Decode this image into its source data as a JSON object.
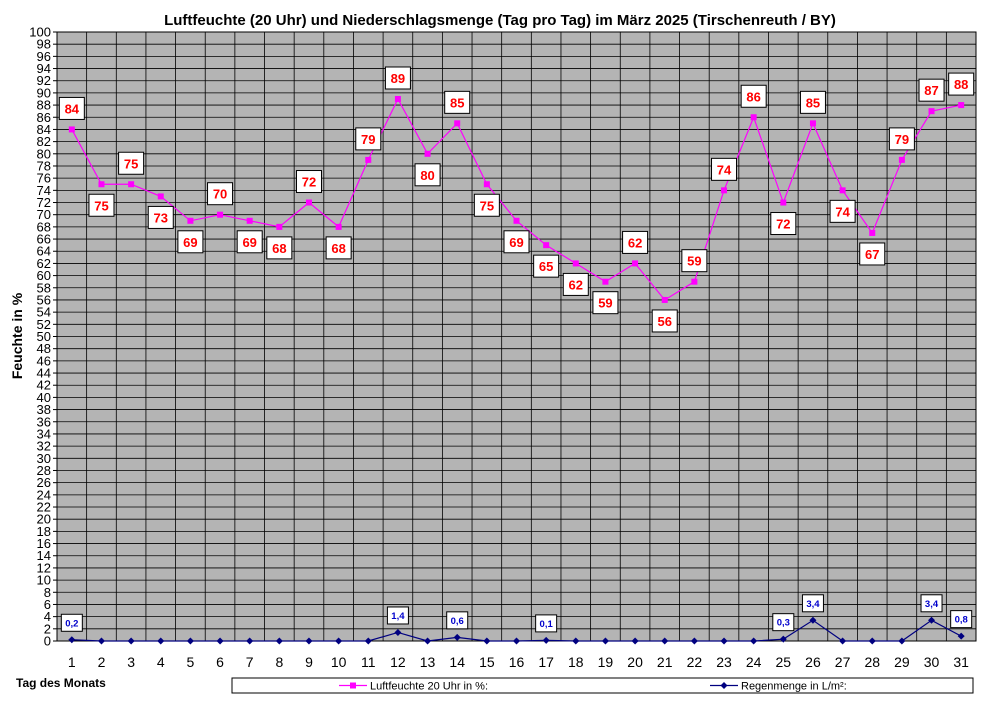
{
  "chart_data": {
    "type": "line",
    "title": "Luftfeuchte (20 Uhr) und Niederschlagsmenge (Tag pro Tag) im März 2025 (Tirschenreuth / BY)",
    "ylabel": "Feuchte in %",
    "xlabel": "Tag des Monats",
    "ylim": [
      0,
      100
    ],
    "ytick_step": 2,
    "grid": true,
    "legend_position": "bottom",
    "colors": {
      "plot_background": "#b4b4b4",
      "grid": "#000000",
      "humidity_line": "#ff00ff",
      "humidity_label_text": "#ff0000",
      "rain_line": "#000080",
      "rain_label_text": "#0000cc"
    },
    "x": [
      1,
      2,
      3,
      4,
      5,
      6,
      7,
      8,
      9,
      10,
      11,
      12,
      13,
      14,
      15,
      16,
      17,
      18,
      19,
      20,
      21,
      22,
      23,
      24,
      25,
      26,
      27,
      28,
      29,
      30,
      31
    ],
    "series": [
      {
        "name": "Luftfeuchte 20 Uhr in %:",
        "marker": "square",
        "values": [
          84,
          75,
          75,
          73,
          69,
          70,
          69,
          68,
          72,
          68,
          79,
          89,
          80,
          85,
          75,
          69,
          65,
          62,
          59,
          62,
          56,
          59,
          74,
          86,
          72,
          85,
          74,
          67,
          79,
          87,
          88
        ],
        "labels": [
          "84",
          "75",
          "75",
          "73",
          "69",
          "70",
          "69",
          "68",
          "72",
          "68",
          "79",
          "89",
          "80",
          "85",
          "75",
          "69",
          "65",
          "62",
          "59",
          "62",
          "56",
          "59",
          "74",
          "86",
          "72",
          "85",
          "74",
          "67",
          "79",
          "87",
          "88"
        ]
      },
      {
        "name": "Regenmenge in L/m²:",
        "marker": "diamond",
        "values": [
          0.2,
          0,
          0,
          0,
          0,
          0,
          0,
          0,
          0,
          0,
          0,
          1.4,
          0,
          0.6,
          0,
          0,
          0.1,
          0,
          0,
          0,
          0,
          0,
          0,
          0,
          0.3,
          3.4,
          0,
          0,
          0,
          3.4,
          0.8
        ],
        "labeled_days": [
          1,
          12,
          14,
          17,
          25,
          26,
          30,
          31
        ],
        "labels": [
          "0,2",
          "1,4",
          "0,6",
          "0,1",
          "0,3",
          "3,4",
          "3,4",
          "0,8"
        ]
      }
    ]
  }
}
